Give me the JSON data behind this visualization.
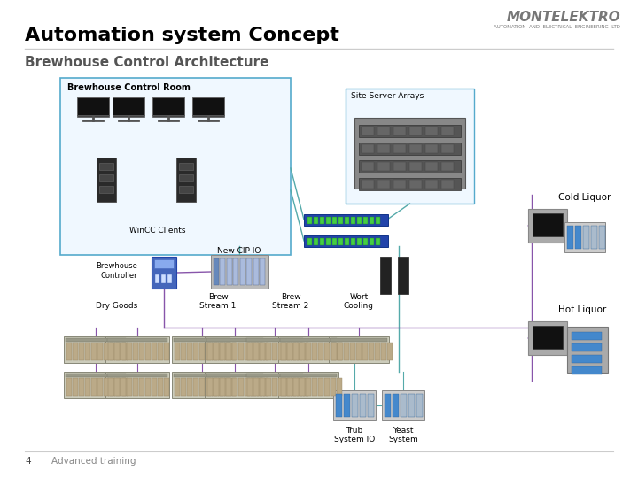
{
  "title": "Automation system Concept",
  "subtitle": "Brewhouse Control Architecture",
  "footer_number": "4",
  "footer_text": "Advanced training",
  "background_color": "#ffffff",
  "title_color": "#000000",
  "subtitle_color": "#555555",
  "logo_text": "MONTELEKTRO",
  "logo_subtext": "AUTOMATION  AND  ELECTRICAL  ENGINEERING  LTD",
  "logo_color": "#777777",
  "line_color": "#cccccc",
  "purple_line": "#8855aa",
  "teal_line": "#55aaaa",
  "labels": {
    "control_room": "Brewhouse Control Room",
    "server_arrays": "Site Server Arrays",
    "wincc": "WinCC Clients",
    "brew_ctrl": "Brewhouse\nController",
    "new_cip": "New CIP IO",
    "dry_goods": "Dry Goods",
    "brew_s1": "Brew\nStream 1",
    "brew_s2": "Brew\nStream 2",
    "wort": "Wort\nCooling",
    "trub": "Trub\nSystem IO",
    "yeast": "Yeast\nSystem",
    "cold_liq": "Cold Liquor",
    "hot_liq": "Hot Liquor"
  }
}
